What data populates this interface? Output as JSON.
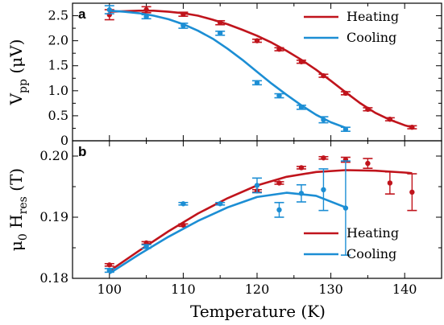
{
  "colors": {
    "heating": "#c0141c",
    "cooling": "#1c8ed4",
    "axis": "#000000"
  },
  "x_axis": {
    "label": "Temperature (K)",
    "range": [
      95,
      145
    ],
    "ticks": [
      100,
      110,
      120,
      130,
      140
    ]
  },
  "chart_data": [
    {
      "type": "scatter",
      "panel_label": "a",
      "ylabel_main": "V",
      "ylabel_sub": "pp",
      "ylabel_unit": "(μV)",
      "ylim": [
        0,
        2.75
      ],
      "yticks": [
        "0",
        "0.5",
        "1.0",
        "1.5",
        "2.0",
        "2.5"
      ],
      "ytick_values": [
        0,
        0.5,
        1.0,
        1.5,
        2.0,
        2.5
      ],
      "legend": {
        "position": "top-right",
        "entries": [
          "Heating",
          "Cooling"
        ]
      },
      "series": [
        {
          "name": "Heating",
          "x": [
            100,
            105,
            110,
            115,
            120,
            123,
            126,
            129,
            132,
            135,
            138,
            141
          ],
          "y": [
            2.52,
            2.62,
            2.53,
            2.36,
            2.0,
            1.83,
            1.58,
            1.3,
            0.95,
            0.63,
            0.43,
            0.27
          ],
          "yerr": [
            0.1,
            0.06,
            0.04,
            0.04,
            0.03,
            0.03,
            0.03,
            0.03,
            0.03,
            0.03,
            0.03,
            0.03
          ],
          "fit": [
            [
              100,
              2.58
            ],
            [
              102,
              2.59
            ],
            [
              104,
              2.6
            ],
            [
              106,
              2.6
            ],
            [
              108,
              2.58
            ],
            [
              110,
              2.55
            ],
            [
              112,
              2.5
            ],
            [
              114,
              2.42
            ],
            [
              116,
              2.33
            ],
            [
              118,
              2.22
            ],
            [
              120,
              2.1
            ],
            [
              122,
              1.96
            ],
            [
              124,
              1.8
            ],
            [
              126,
              1.62
            ],
            [
              128,
              1.42
            ],
            [
              130,
              1.2
            ],
            [
              132,
              0.97
            ],
            [
              134,
              0.75
            ],
            [
              136,
              0.56
            ],
            [
              138,
              0.42
            ],
            [
              140,
              0.31
            ],
            [
              141,
              0.27
            ]
          ]
        },
        {
          "name": "Cooling",
          "x": [
            100,
            105,
            110,
            115,
            120,
            123,
            126,
            129,
            132
          ],
          "y": [
            2.62,
            2.48,
            2.3,
            2.15,
            1.16,
            0.9,
            0.67,
            0.42,
            0.23
          ],
          "yerr": [
            0.08,
            0.04,
            0.05,
            0.04,
            0.04,
            0.04,
            0.04,
            0.06,
            0.04
          ],
          "fit": [
            [
              100,
              2.6
            ],
            [
              102,
              2.58
            ],
            [
              104,
              2.55
            ],
            [
              106,
              2.5
            ],
            [
              108,
              2.43
            ],
            [
              110,
              2.33
            ],
            [
              112,
              2.2
            ],
            [
              114,
              2.04
            ],
            [
              116,
              1.84
            ],
            [
              118,
              1.62
            ],
            [
              120,
              1.38
            ],
            [
              122,
              1.14
            ],
            [
              124,
              0.92
            ],
            [
              126,
              0.71
            ],
            [
              128,
              0.52
            ],
            [
              130,
              0.37
            ],
            [
              132,
              0.26
            ]
          ]
        }
      ]
    },
    {
      "type": "scatter",
      "panel_label": "b",
      "ylabel_main": "μ",
      "ylabel_sub0": "0",
      "ylabel_mid": " H",
      "ylabel_sub": "res",
      "ylabel_unit": "(T)",
      "ylim": [
        0.18,
        0.2025
      ],
      "yticks": [
        "0.18",
        "0.19",
        "0.20"
      ],
      "ytick_values": [
        0.18,
        0.19,
        0.2
      ],
      "legend": {
        "position": "bottom-right",
        "entries": [
          "Heating",
          "Cooling"
        ]
      },
      "series": [
        {
          "name": "Heating",
          "x": [
            100,
            105,
            110,
            120,
            123,
            126,
            129,
            132,
            135,
            138,
            141
          ],
          "y": [
            0.1822,
            0.1858,
            0.1887,
            0.1943,
            0.1956,
            0.1981,
            0.1997,
            0.1994,
            0.1988,
            0.1956,
            0.1941
          ],
          "yerr": [
            0.0002,
            0.0002,
            0.0002,
            0.0002,
            0.0002,
            0.0002,
            0.0002,
            0.0004,
            0.0008,
            0.0018,
            0.003
          ],
          "fit": [
            [
              100,
              0.1812
            ],
            [
              104,
              0.1845
            ],
            [
              108,
              0.1877
            ],
            [
              112,
              0.1906
            ],
            [
              116,
              0.1931
            ],
            [
              120,
              0.1952
            ],
            [
              124,
              0.1966
            ],
            [
              128,
              0.1974
            ],
            [
              132,
              0.1977
            ],
            [
              136,
              0.1976
            ],
            [
              140,
              0.1973
            ],
            [
              141,
              0.1972
            ]
          ]
        },
        {
          "name": "Cooling",
          "x": [
            100,
            105,
            110,
            115,
            120,
            123,
            126,
            129,
            132
          ],
          "y": [
            0.1813,
            0.1852,
            0.1922,
            0.1922,
            0.1952,
            0.1912,
            0.1939,
            0.1945,
            0.1915
          ],
          "yerr": [
            0.0003,
            0.0003,
            0.0002,
            0.0002,
            0.0012,
            0.0012,
            0.0014,
            0.0034,
            0.0077
          ],
          "fit": [
            [
              100,
              0.1808
            ],
            [
              104,
              0.1839
            ],
            [
              108,
              0.1868
            ],
            [
              112,
              0.1894
            ],
            [
              116,
              0.1916
            ],
            [
              120,
              0.1933
            ],
            [
              124,
              0.194
            ],
            [
              128,
              0.1935
            ],
            [
              132,
              0.1916
            ]
          ]
        }
      ]
    }
  ]
}
